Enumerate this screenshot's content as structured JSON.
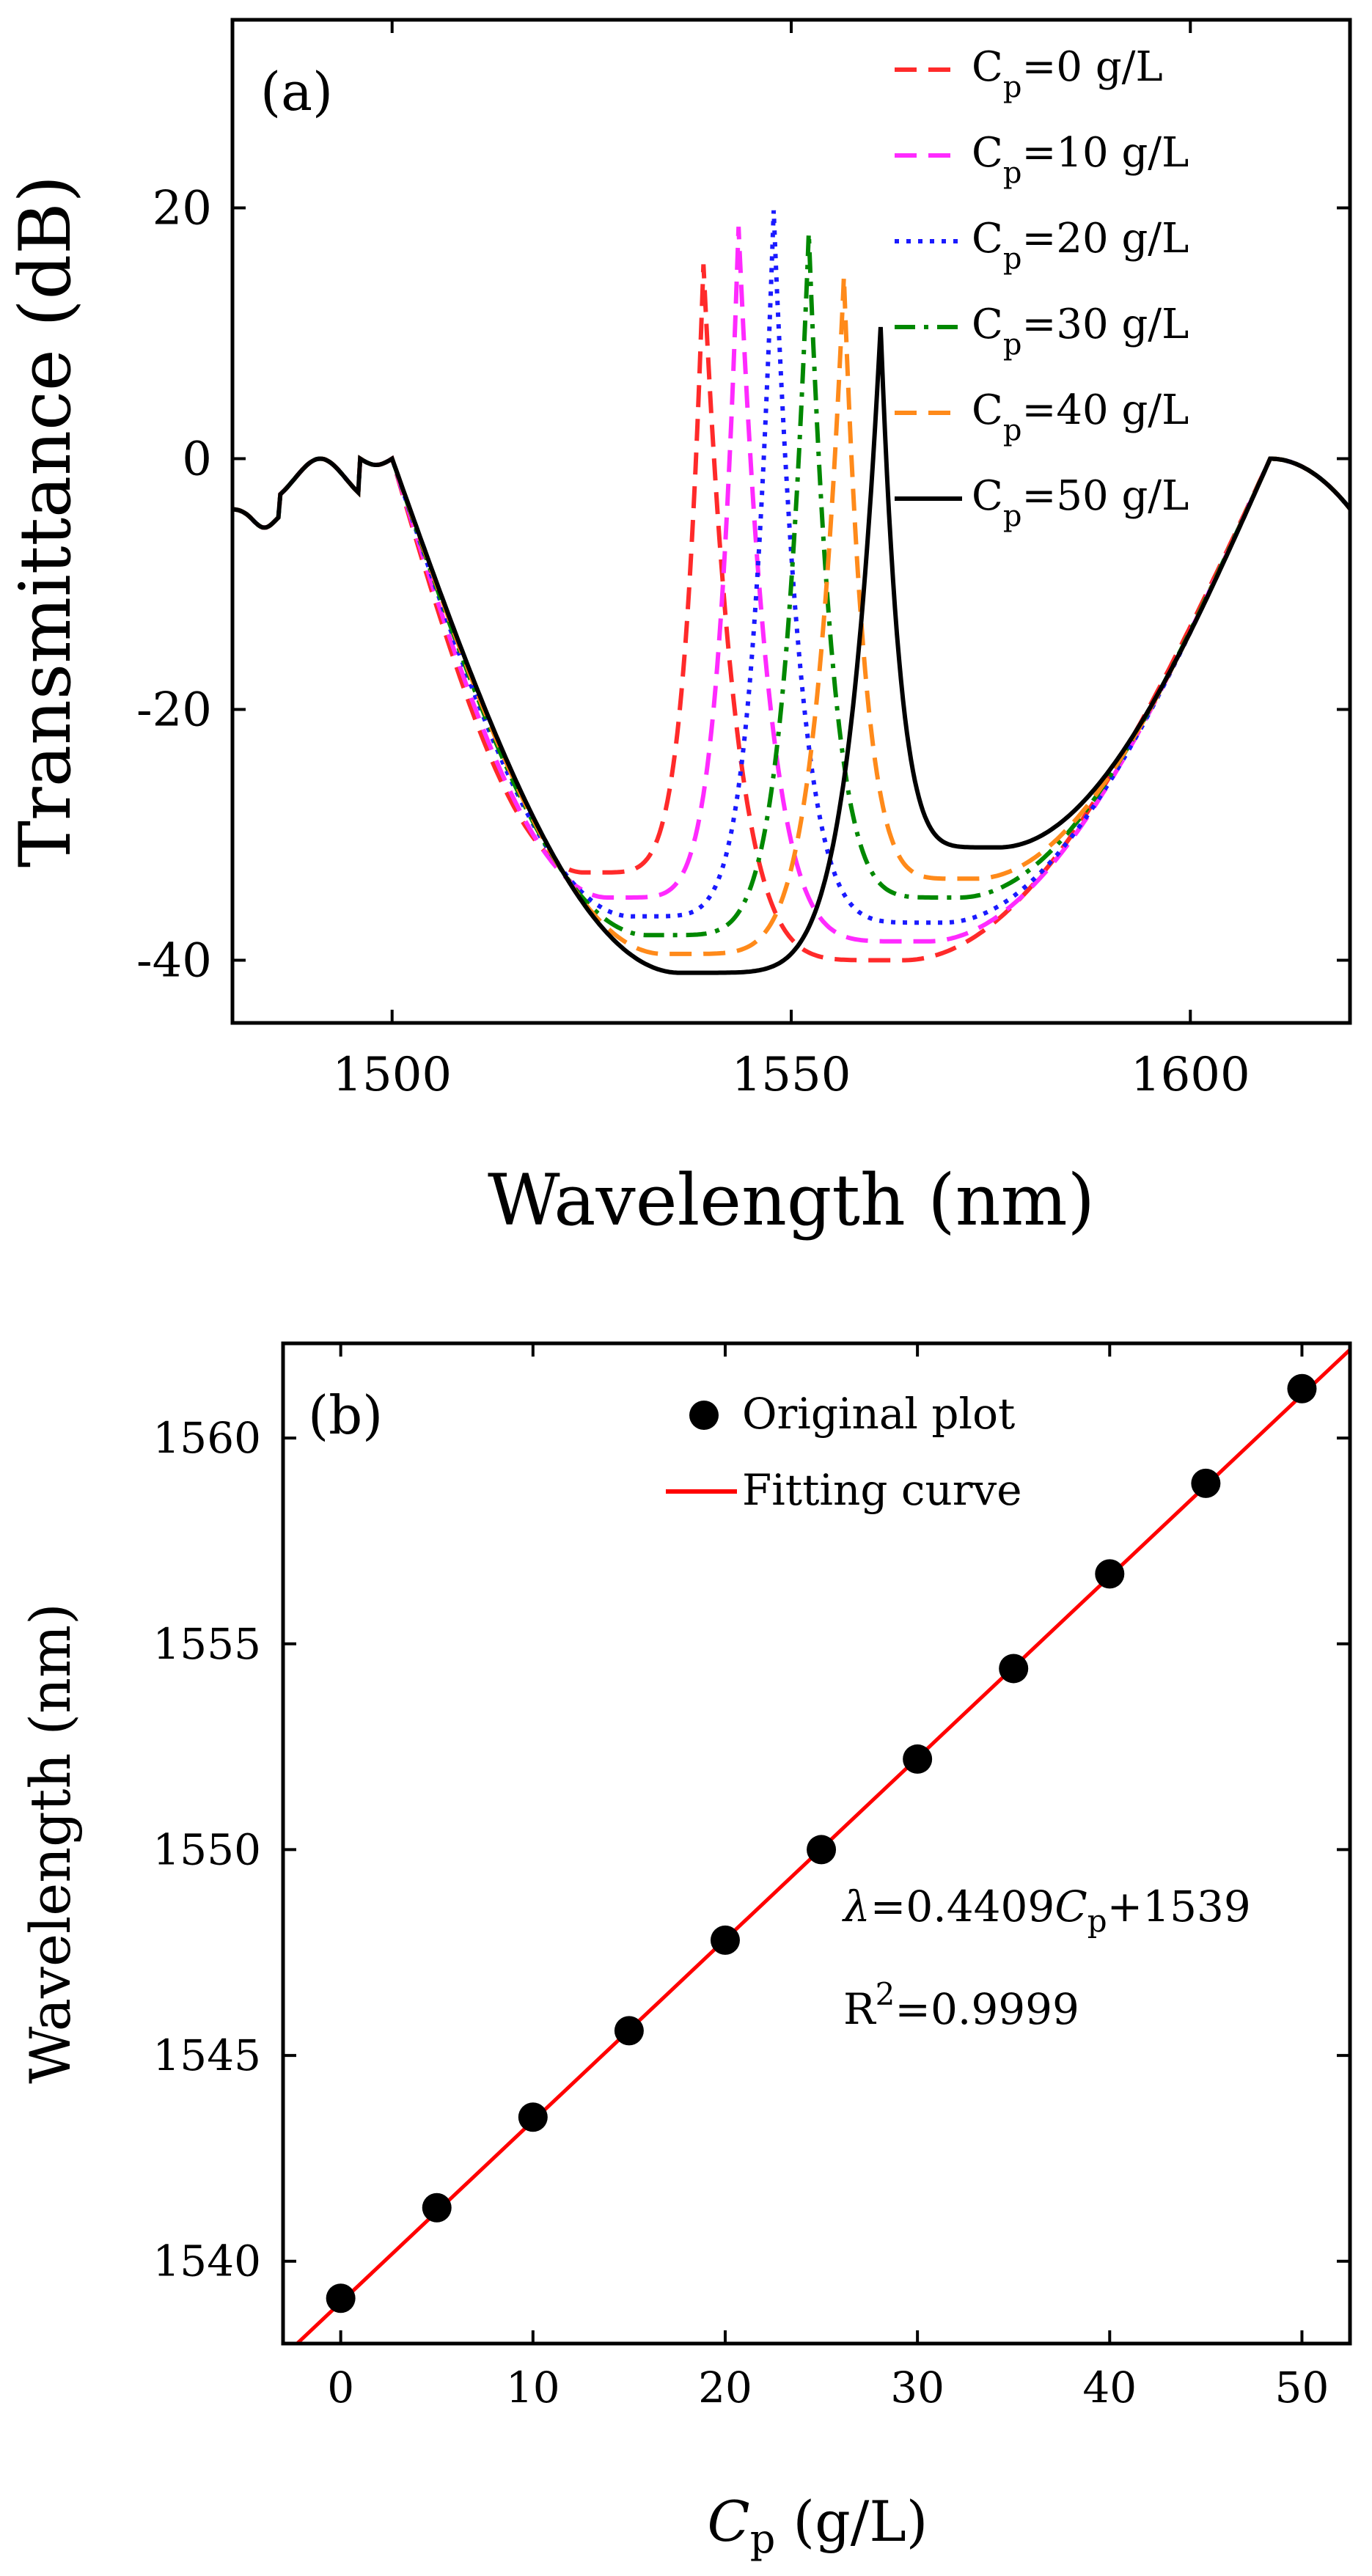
{
  "chart_data": [
    {
      "type": "line",
      "panel_label": "(a)",
      "xlabel": "Wavelength (nm)",
      "ylabel": "Transmittance (dB)",
      "xlim": [
        1480,
        1620
      ],
      "ylim": [
        -45,
        35
      ],
      "xticks": [
        1500,
        1550,
        1600
      ],
      "yticks": [
        -40,
        -20,
        0,
        20
      ],
      "xtick_labels": [
        "1500",
        "1550",
        "1600"
      ],
      "ytick_labels": [
        "-40",
        "-20",
        "0",
        "20"
      ],
      "legend_position": "top-right",
      "series": [
        {
          "name": "Cp=0 g/L",
          "legend_main": "C",
          "legend_sub": "p",
          "legend_rest": "=0 g/L",
          "color": "#ff2a2a",
          "dash": "dashed",
          "peak_wavelength": 1539,
          "peak_db": 15.5,
          "min_left_db": -33,
          "min_left_at": 1524,
          "min_right_db": -40,
          "min_right_at": 1564
        },
        {
          "name": "Cp=10 g/L",
          "legend_main": "C",
          "legend_sub": "p",
          "legend_rest": "=10 g/L",
          "color": "#ff2aff",
          "dash": "dashed",
          "peak_wavelength": 1543.4,
          "peak_db": 18.5,
          "min_left_db": -35,
          "min_left_at": 1527,
          "min_right_db": -38.5,
          "min_right_at": 1567
        },
        {
          "name": "Cp=20 g/L",
          "legend_main": "C",
          "legend_sub": "p",
          "legend_rest": "=20 g/L",
          "color": "#1a1aff",
          "dash": "dotted",
          "peak_wavelength": 1547.8,
          "peak_db": 19.8,
          "min_left_db": -36.5,
          "min_left_at": 1530,
          "min_right_db": -37,
          "min_right_at": 1569
        },
        {
          "name": "Cp=30 g/L",
          "legend_main": "C",
          "legend_sub": "p",
          "legend_rest": "=30 g/L",
          "color": "#008800",
          "dash": "dashdot",
          "peak_wavelength": 1552.2,
          "peak_db": 18,
          "min_left_db": -38,
          "min_left_at": 1532,
          "min_right_db": -35,
          "min_right_at": 1571
        },
        {
          "name": "Cp=40 g/L",
          "legend_main": "C",
          "legend_sub": "p",
          "legend_rest": "=40 g/L",
          "color": "#ff8a1a",
          "dash": "dashed",
          "peak_wavelength": 1556.6,
          "peak_db": 14.5,
          "min_left_db": -39.5,
          "min_left_at": 1534,
          "min_right_db": -33.5,
          "min_right_at": 1573
        },
        {
          "name": "Cp=50 g/L",
          "legend_main": "C",
          "legend_sub": "p",
          "legend_rest": "=50 g/L",
          "color": "#000000",
          "dash": "solid",
          "peak_wavelength": 1561.2,
          "peak_db": 10.5,
          "min_left_db": -41,
          "min_left_at": 1536,
          "min_right_db": -31,
          "min_right_at": 1576
        }
      ]
    },
    {
      "type": "scatter",
      "panel_label": "(b)",
      "xlabel_main": "C",
      "xlabel_sub": "p",
      "xlabel_rest": " (g/L)",
      "ylabel": "Wavelength (nm)",
      "xlim": [
        -3,
        52.5
      ],
      "ylim": [
        1538,
        1562.3
      ],
      "xticks": [
        0,
        10,
        20,
        30,
        40,
        50
      ],
      "yticks": [
        1540,
        1545,
        1550,
        1555,
        1560
      ],
      "xtick_labels": [
        "0",
        "10",
        "20",
        "30",
        "40",
        "50"
      ],
      "ytick_labels": [
        "1540",
        "1545",
        "1550",
        "1555",
        "1560"
      ],
      "points_x": [
        0,
        5,
        10,
        15,
        20,
        25,
        30,
        35,
        40,
        45,
        50
      ],
      "points_y": [
        1539.1,
        1541.3,
        1543.5,
        1545.6,
        1547.8,
        1550.0,
        1552.2,
        1554.4,
        1556.7,
        1558.9,
        1561.2
      ],
      "fit": {
        "slope": 0.4409,
        "intercept": 1539
      },
      "legend": [
        {
          "label": "Original plot",
          "color": "#000000",
          "marker": "circle"
        },
        {
          "label": "Fitting curve",
          "color": "#ff0000",
          "marker": "line"
        }
      ],
      "annotation_eq": {
        "lambda": "λ",
        "rest": "=0.4409",
        "c": "C",
        "sub": "p",
        "tail": "+1539"
      },
      "annotation_r2": {
        "r": "R",
        "sup": "2",
        "rest": "=0.9999"
      }
    }
  ]
}
